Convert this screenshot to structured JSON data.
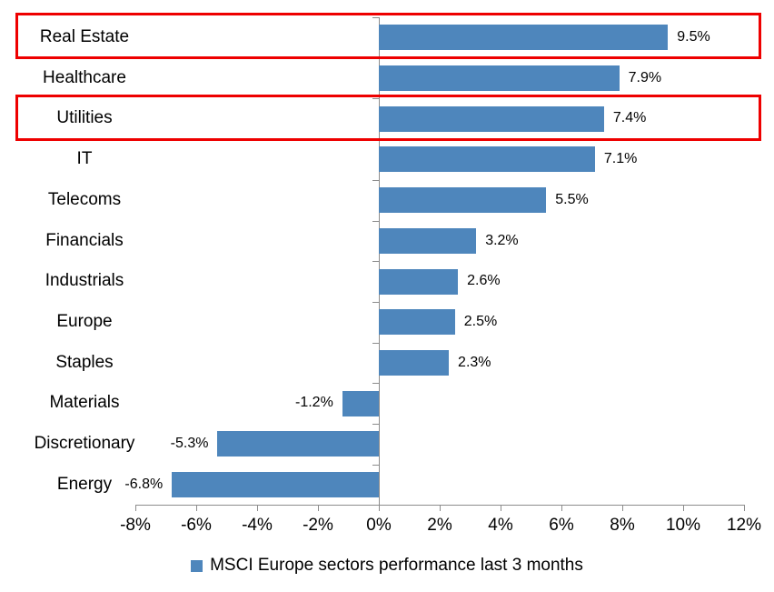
{
  "chart_data": {
    "type": "bar",
    "orientation": "horizontal",
    "title": "",
    "xlabel": "",
    "ylabel": "",
    "categories": [
      "Real Estate",
      "Healthcare",
      "Utilities",
      "IT",
      "Telecoms",
      "Financials",
      "Industrials",
      "Europe",
      "Staples",
      "Materials",
      "Discretionary",
      "Energy"
    ],
    "values": [
      9.5,
      7.9,
      7.4,
      7.1,
      5.5,
      3.2,
      2.6,
      2.5,
      2.3,
      -1.2,
      -5.3,
      -6.8
    ],
    "value_labels": [
      "9.5%",
      "7.9%",
      "7.4%",
      "7.1%",
      "5.5%",
      "3.2%",
      "2.6%",
      "2.5%",
      "2.3%",
      "-1.2%",
      "-5.3%",
      "-6.8%"
    ],
    "x_ticks": [
      "-8%",
      "-6%",
      "-4%",
      "-2%",
      "0%",
      "2%",
      "4%",
      "6%",
      "8%",
      "10%",
      "12%"
    ],
    "xlim": [
      -8,
      12
    ],
    "grid": false,
    "legend": "MSCI Europe sectors performance last 3 months",
    "legend_position": "bottom",
    "highlighted": [
      "Real Estate",
      "Utilities"
    ],
    "bar_color": "#4e86bc",
    "highlight_color": "#ee0000",
    "axis_color": "#8c8c8c",
    "text_color": "#000000"
  }
}
